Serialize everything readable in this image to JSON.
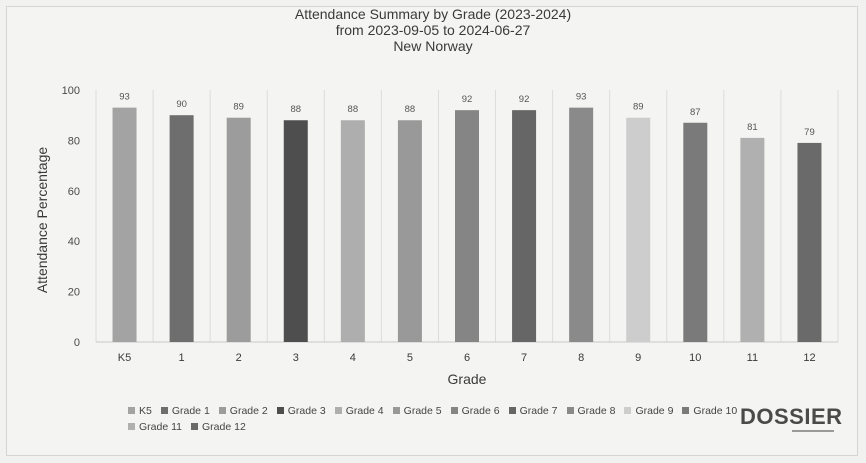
{
  "chart_data": {
    "type": "bar",
    "title": "Attendance Summary by Grade (2023-2024)",
    "subtitle_lines": [
      "from 2023-09-05 to 2024-06-27",
      "New Norway"
    ],
    "xlabel": "Grade",
    "ylabel": "Attendance Percentage",
    "ylim": [
      0,
      100
    ],
    "yticks": [
      0,
      20,
      40,
      60,
      80,
      100
    ],
    "grid": "vertical",
    "legend_position": "bottom",
    "categories": [
      "K5",
      "1",
      "2",
      "3",
      "4",
      "5",
      "6",
      "7",
      "8",
      "9",
      "10",
      "11",
      "12"
    ],
    "values": [
      93,
      90,
      89,
      88,
      88,
      88,
      92,
      92,
      93,
      89,
      87,
      81,
      79
    ],
    "data_labels": [
      "93",
      "90",
      "89",
      "88",
      "88",
      "88",
      "92",
      "92",
      "93",
      "89",
      "87",
      "81",
      "79"
    ],
    "legend": [
      "K5",
      "Grade 1",
      "Grade 2",
      "Grade 3",
      "Grade 4",
      "Grade 5",
      "Grade 6",
      "Grade 7",
      "Grade 8",
      "Grade 9",
      "Grade 10",
      "Grade 11",
      "Grade 12"
    ],
    "colors": [
      "#a3a3a3",
      "#6e6e6e",
      "#9c9c9c",
      "#4e4e4e",
      "#aeaeae",
      "#999999",
      "#858585",
      "#666666",
      "#8a8a8a",
      "#cdcdcd",
      "#7a7a7a",
      "#b0b0b0",
      "#6a6a6a"
    ]
  },
  "brand": {
    "logo_text": "DOSSIER"
  }
}
